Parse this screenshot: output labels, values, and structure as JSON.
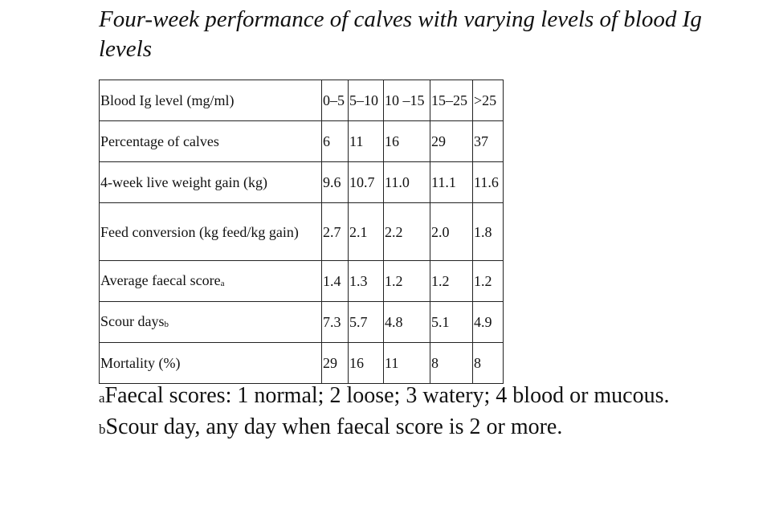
{
  "title": "Four-week performance of calves with varying levels of blood Ig levels",
  "table": {
    "header": {
      "label": "Blood Ig level (mg/ml)",
      "columns": [
        "0–5",
        "5–10",
        "10 –15",
        "15–25",
        ">25"
      ]
    },
    "rows": [
      {
        "label": "Percentage of calves",
        "marker": "",
        "values": [
          "6",
          "11",
          "16",
          "29",
          "37"
        ]
      },
      {
        "label": "4-week live weight gain (kg)",
        "marker": "",
        "values": [
          "9.6",
          "10.7",
          "11.0",
          "11.1",
          "11.6"
        ]
      },
      {
        "label": "Feed conversion (kg feed/kg gain)",
        "marker": "",
        "values": [
          "2.7",
          "2.1",
          "2.2",
          "2.0",
          "1.8"
        ]
      },
      {
        "label": "Average faecal score",
        "marker": "a",
        "values": [
          "1.4",
          "1.3",
          "1.2",
          "1.2",
          "1.2"
        ]
      },
      {
        "label": "Scour days",
        "marker": "b",
        "values": [
          "7.3",
          "5.7",
          "4.8",
          "5.1",
          "4.9"
        ]
      },
      {
        "label": "Mortality (%)",
        "marker": "",
        "values": [
          "29",
          "16",
          "11",
          "8",
          "8"
        ]
      }
    ]
  },
  "footnotes": {
    "a_marker": "a",
    "a_text": "Faecal scores: 1 normal; 2 loose; 3 watery; 4 blood or mucous.",
    "b_marker": "b",
    "b_text": "Scour day, any day when faecal score is 2 or more."
  }
}
